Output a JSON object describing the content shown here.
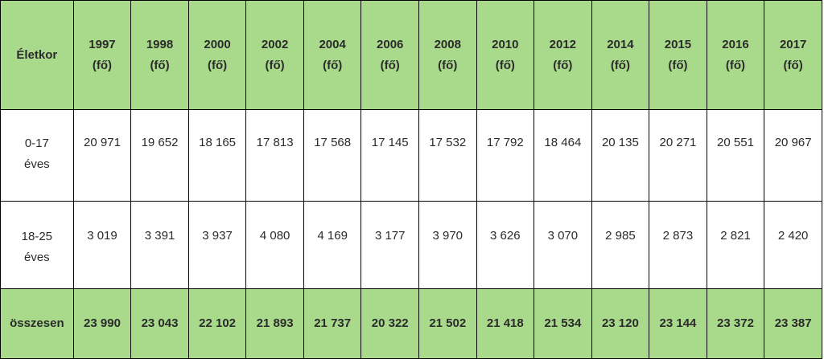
{
  "table": {
    "age_header": "Életkor",
    "unit": "(fő)",
    "years": [
      "1997",
      "1998",
      "2000",
      "2002",
      "2004",
      "2006",
      "2008",
      "2010",
      "2012",
      "2014",
      "2015",
      "2016",
      "2017"
    ],
    "rows": [
      {
        "label": [
          "0-17",
          "éves"
        ],
        "values": [
          "20 971",
          "19 652",
          "18 165",
          "17 813",
          "17 568",
          "17 145",
          "17 532",
          "17 792",
          "18 464",
          "20 135",
          "20 271",
          "20 551",
          "20 967"
        ]
      },
      {
        "label": [
          "18-25",
          "éves"
        ],
        "values": [
          "3 019",
          "3 391",
          "3 937",
          "4 080",
          "4 169",
          "3 177",
          "3 970",
          "3 626",
          "3 070",
          "2 985",
          "2 873",
          "2 821",
          "2 420"
        ]
      }
    ],
    "total": {
      "label": "összesen",
      "values": [
        "23 990",
        "23 043",
        "22 102",
        "21 893",
        "21 737",
        "20 322",
        "21 502",
        "21 418",
        "21 534",
        "23 120",
        "23 144",
        "23 372",
        "23 387"
      ]
    },
    "colors": {
      "header_fill": "#a9d98b",
      "border": "#000000",
      "text": "#2b2b2b"
    }
  }
}
